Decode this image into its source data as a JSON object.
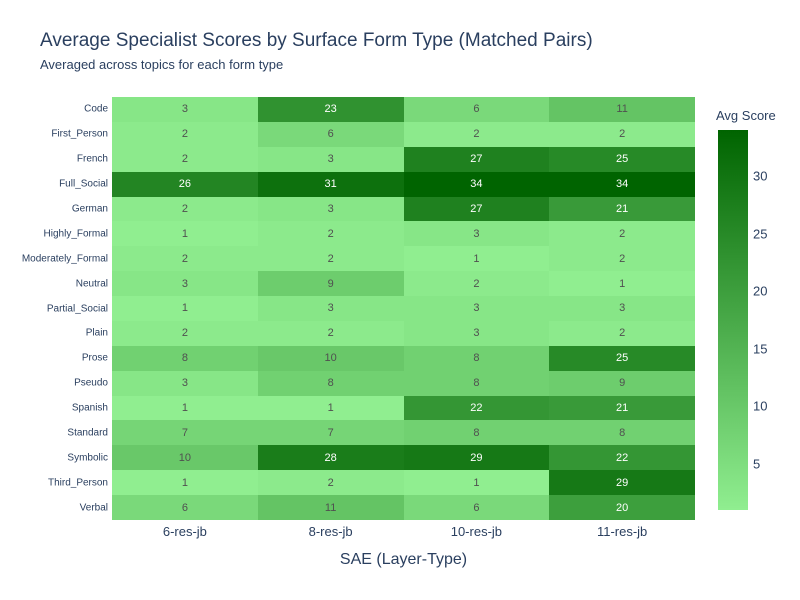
{
  "colors": {
    "background": "#ffffff",
    "text": "#2a3f5f",
    "cell_text_dark": "#505050",
    "cell_text_light": "#ffffff",
    "scale_min_color": "#90EE90",
    "scale_max_color": "#006400"
  },
  "chart_data": {
    "type": "heatmap",
    "title": "Average Specialist Scores by Surface Form Type (Matched Pairs)",
    "subtitle": "Averaged across topics for each form type",
    "xlabel": "SAE (Layer-Type)",
    "ylabel": "",
    "categories_x": [
      "6-res-jb",
      "8-res-jb",
      "10-res-jb",
      "11-res-jb"
    ],
    "categories_y": [
      "Code",
      "First_Person",
      "French",
      "Full_Social",
      "German",
      "Highly_Formal",
      "Moderately_Formal",
      "Neutral",
      "Partial_Social",
      "Plain",
      "Prose",
      "Pseudo",
      "Spanish",
      "Standard",
      "Symbolic",
      "Third_Person",
      "Verbal"
    ],
    "values": [
      [
        3,
        23,
        6,
        11
      ],
      [
        2,
        6,
        2,
        2
      ],
      [
        2,
        3,
        27,
        25
      ],
      [
        26,
        31,
        34,
        34
      ],
      [
        2,
        3,
        27,
        21
      ],
      [
        1,
        2,
        3,
        2
      ],
      [
        2,
        2,
        1,
        2
      ],
      [
        3,
        9,
        2,
        1
      ],
      [
        1,
        3,
        3,
        3
      ],
      [
        2,
        2,
        3,
        2
      ],
      [
        8,
        10,
        8,
        25
      ],
      [
        3,
        8,
        8,
        9
      ],
      [
        1,
        1,
        22,
        21
      ],
      [
        7,
        7,
        8,
        8
      ],
      [
        10,
        28,
        29,
        22
      ],
      [
        1,
        2,
        1,
        29
      ],
      [
        6,
        11,
        6,
        20
      ]
    ],
    "zmin": 1,
    "zmax": 34,
    "grid": false,
    "legend_position": "right-colorbar",
    "colorbar": {
      "title": "Avg Score",
      "ticks": [
        5,
        10,
        15,
        20,
        25,
        30
      ]
    }
  }
}
